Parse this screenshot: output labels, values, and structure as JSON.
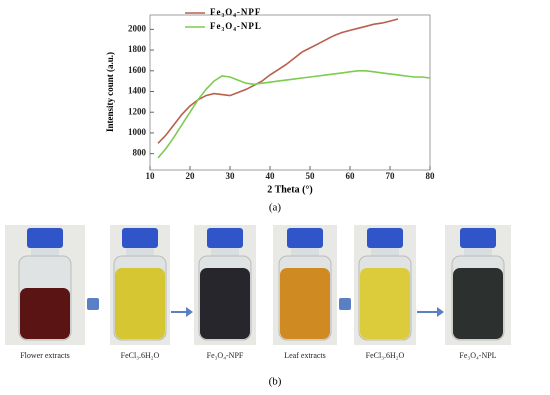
{
  "chart_data": {
    "type": "line",
    "x": [
      12,
      14,
      16,
      18,
      20,
      22,
      24,
      26,
      28,
      30,
      32,
      34,
      36,
      38,
      40,
      42,
      44,
      46,
      48,
      50,
      52,
      54,
      56,
      58,
      60,
      62,
      64,
      66,
      68,
      70,
      72,
      74,
      76,
      78,
      80
    ],
    "series": [
      {
        "name": "Fe₃O₄-NPF",
        "color": "#b8604c",
        "values": [
          900,
          980,
          1080,
          1180,
          1260,
          1320,
          1360,
          1380,
          1370,
          1360,
          1390,
          1420,
          1460,
          1500,
          1560,
          1610,
          1660,
          1720,
          1780,
          1820,
          1860,
          1900,
          1940,
          1970,
          1990,
          2010,
          2030,
          2050,
          2060,
          2080,
          2100,
          null,
          null,
          null,
          null
        ]
      },
      {
        "name": "Fe₃O₄-NPL",
        "color": "#7ccc50",
        "values": [
          760,
          850,
          960,
          1080,
          1200,
          1320,
          1420,
          1500,
          1550,
          1540,
          1510,
          1480,
          1470,
          1480,
          1490,
          1500,
          1510,
          1520,
          1530,
          1540,
          1550,
          1560,
          1570,
          1580,
          1590,
          1600,
          1600,
          1590,
          1580,
          1570,
          1560,
          1550,
          1540,
          1540,
          1530
        ]
      }
    ],
    "xlim": [
      10,
      80
    ],
    "xticks": [
      10,
      20,
      30,
      40,
      50,
      60,
      70,
      80
    ],
    "ylim": [
      700,
      2100
    ],
    "yticks": [
      800,
      1000,
      1200,
      1400,
      1600,
      1800,
      2000
    ],
    "xlabel": "2 Theta (°)",
    "ylabel": "Intensity count (a.u.)",
    "caption": "(a)"
  },
  "photo": {
    "labels": [
      "Flower extracts",
      "FeCl₃.6H₂O",
      "Fe₃O₄-NPF",
      "Leaf extracts",
      "FeCl₃.6H₂O",
      "Fe₃O₄-NPL"
    ],
    "caption": "(b)"
  }
}
